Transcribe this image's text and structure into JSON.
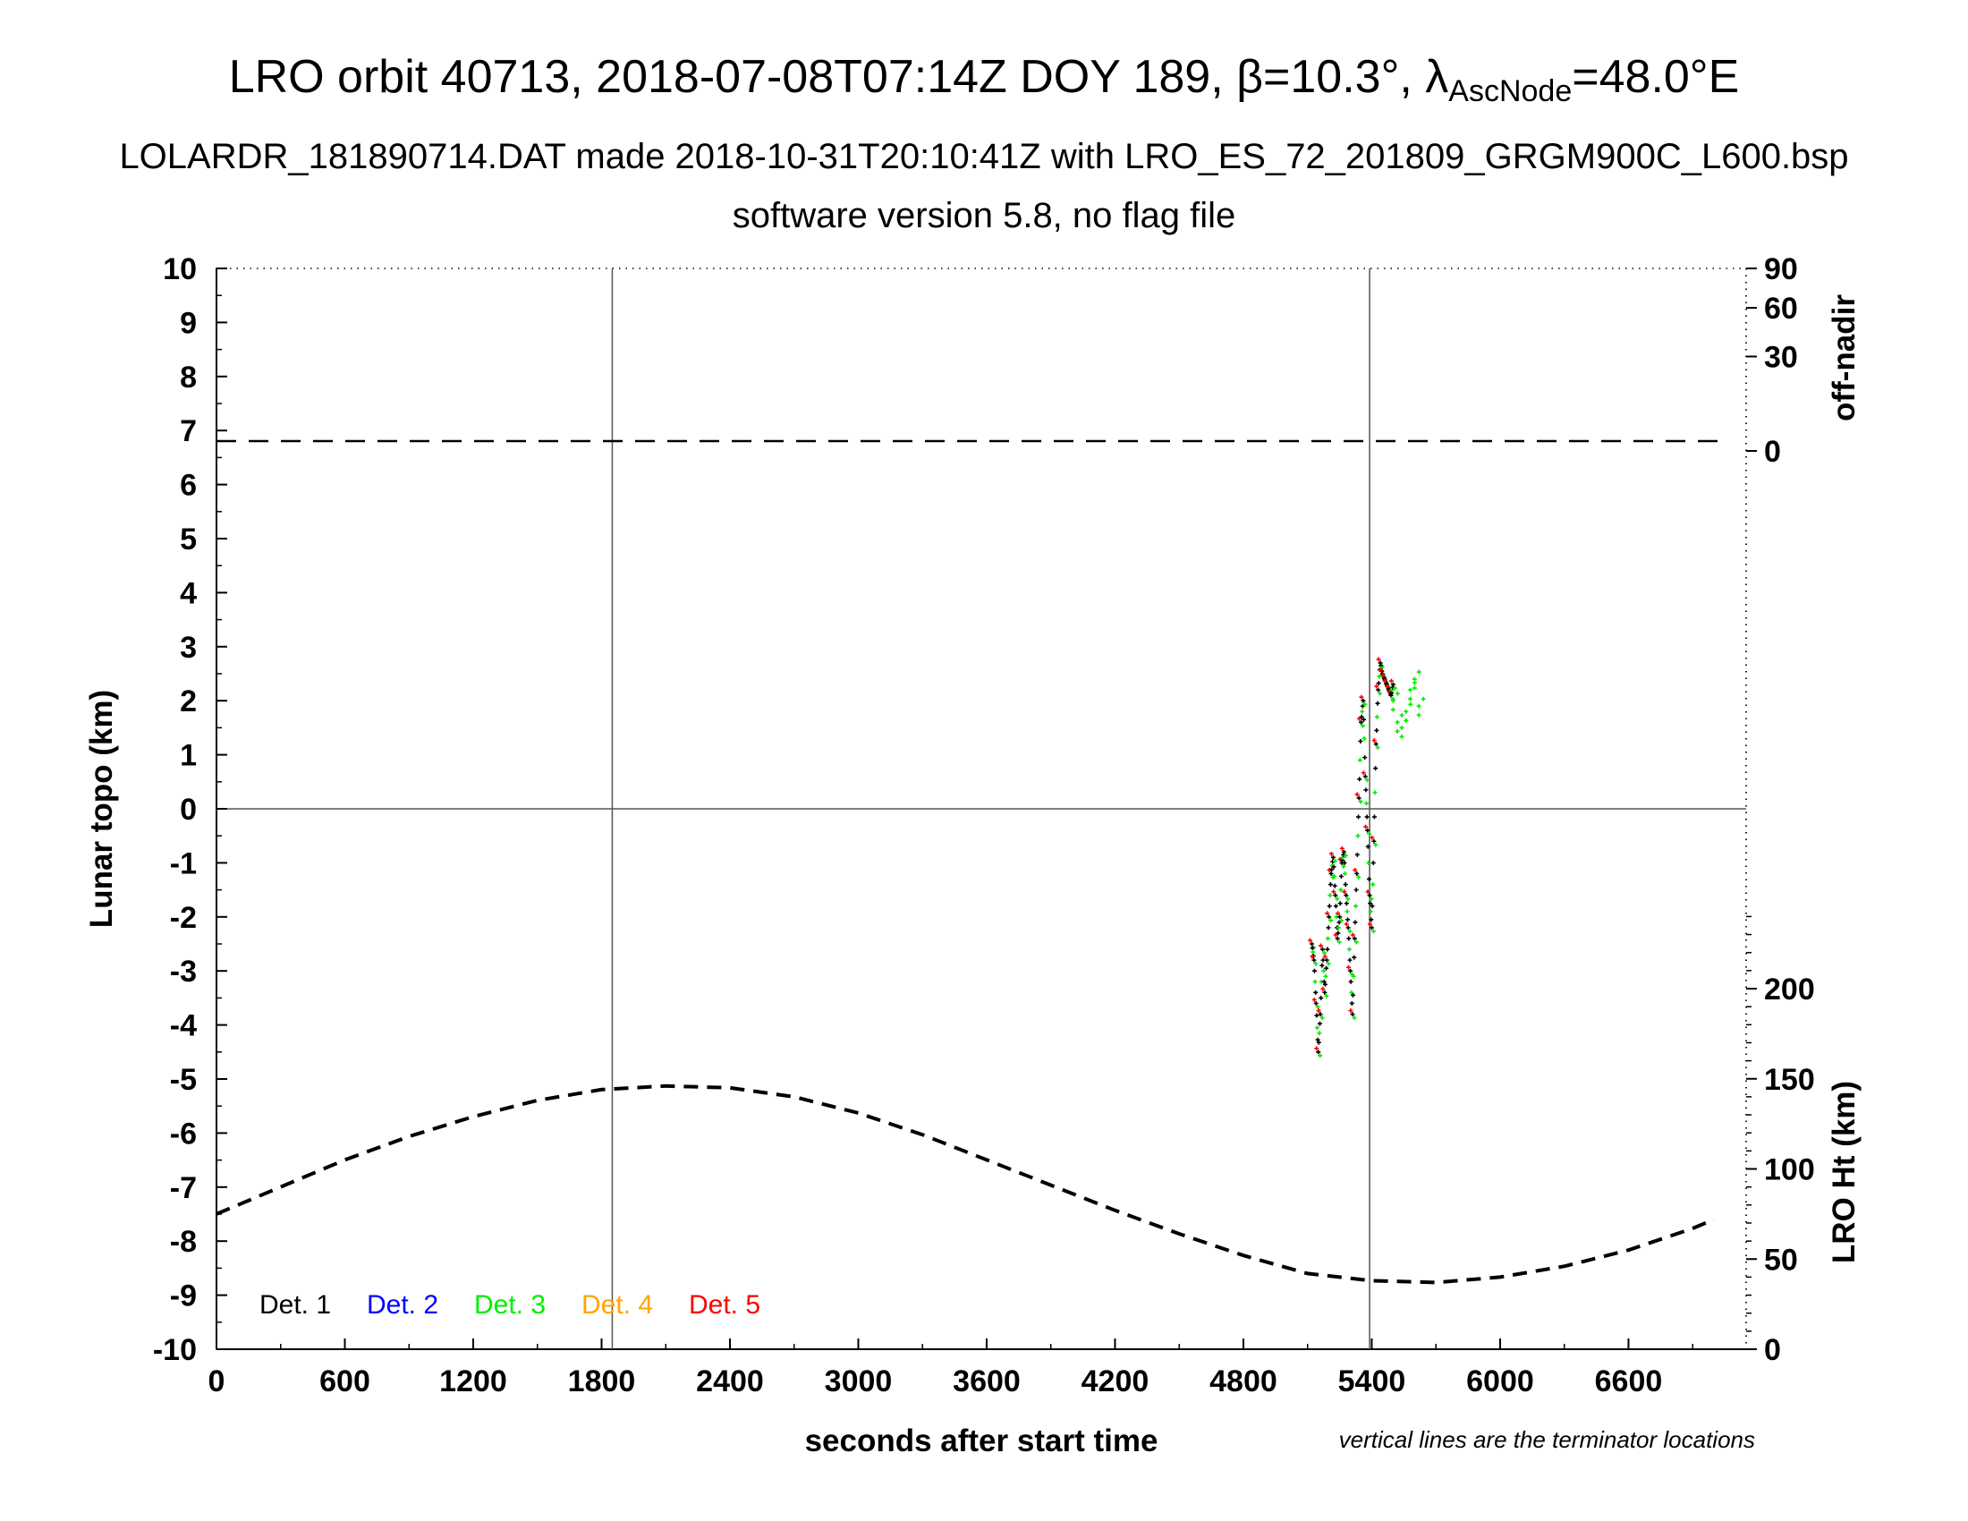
{
  "chart_data": {
    "type": "scatter",
    "title_main": "LRO orbit 40713, 2018-07-08T07:14Z DOY 189, β=10.3°, λ",
    "title_sub": "AscNode",
    "title_tail": "=48.0°E",
    "subtitle_1": "LOLARDR_181890714.DAT made 2018-10-31T20:10:41Z with LRO_ES_72_201809_GRGM900C_L600.bsp",
    "subtitle_2": "software version 5.8, no flag file",
    "xlabel": "seconds after start time",
    "ylabel": "Lunar topo (km)",
    "y2label_top": "off-nadir",
    "y2label_bottom": "LRO Ht (km)",
    "note": "vertical lines are the terminator locations",
    "xlim": [
      0,
      7150
    ],
    "ylim": [
      -10,
      10
    ],
    "x_ticks": [
      "0",
      "600",
      "1200",
      "1800",
      "2400",
      "3000",
      "3600",
      "4200",
      "4800",
      "5400",
      "6000",
      "6600"
    ],
    "y_ticks": [
      "-10",
      "-9",
      "-8",
      "-7",
      "-6",
      "-5",
      "-4",
      "-3",
      "-2",
      "-1",
      "0",
      "1",
      "2",
      "3",
      "4",
      "5",
      "6",
      "7",
      "8",
      "9",
      "10"
    ],
    "off_nadir_ticks": [
      "0",
      "30",
      "60",
      "90"
    ],
    "lro_ht_ticks": [
      "0",
      "50",
      "100",
      "150",
      "200"
    ],
    "terminator_x": [
      1850,
      5390
    ],
    "off_nadir_deg": 0,
    "lro_height": {
      "x": [
        0,
        300,
        600,
        900,
        1200,
        1500,
        1800,
        2100,
        2400,
        2700,
        3000,
        3300,
        3600,
        3900,
        4200,
        4500,
        4800,
        5100,
        5400,
        5700,
        6000,
        6300,
        6600,
        6900,
        7000
      ],
      "height_km": [
        75,
        90,
        105,
        118,
        129,
        138,
        144,
        146,
        145,
        140,
        131,
        119,
        105,
        91,
        77,
        64,
        52,
        42,
        38,
        37,
        40,
        46,
        55,
        67,
        72
      ]
    },
    "legend": [
      {
        "label": "Det. 1",
        "color": "#000000"
      },
      {
        "label": "Det. 2",
        "color": "#0000ff"
      },
      {
        "label": "Det. 3",
        "color": "#00ee00"
      },
      {
        "label": "Det. 4",
        "color": "#ffa500"
      },
      {
        "label": "Det. 5",
        "color": "#ff0000"
      }
    ],
    "topo_profile": {
      "x": [
        5120,
        5130,
        5140,
        5150,
        5160,
        5170,
        5180,
        5190,
        5200,
        5210,
        5220,
        5230,
        5240,
        5250,
        5260,
        5270,
        5280,
        5290,
        5300,
        5310,
        5320,
        5330,
        5340,
        5350,
        5360,
        5370,
        5380,
        5390,
        5400,
        5410,
        5420,
        5430,
        5440,
        5450,
        5460,
        5470,
        5480,
        5490,
        5500
      ],
      "y": [
        -2.5,
        -2.8,
        -3.6,
        -4.5,
        -3.8,
        -2.6,
        -3.4,
        -2.8,
        -2.0,
        -1.2,
        -0.9,
        -1.6,
        -2.4,
        -2.0,
        -1.0,
        -0.8,
        -1.6,
        -2.2,
        -3.0,
        -3.8,
        -2.4,
        -1.2,
        0.2,
        1.6,
        2.0,
        0.6,
        -0.4,
        -1.6,
        -2.2,
        -0.6,
        1.2,
        2.2,
        2.7,
        2.5,
        2.4,
        2.3,
        2.2,
        2.1,
        2.3
      ]
    },
    "det3_extra": {
      "x": [
        5500,
        5520,
        5540,
        5560,
        5580,
        5600,
        5620
      ],
      "y": [
        2.0,
        1.6,
        1.5,
        1.8,
        2.2,
        2.4,
        1.9
      ]
    }
  }
}
